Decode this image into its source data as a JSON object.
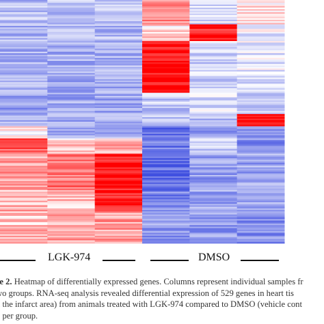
{
  "chart_data": {
    "type": "heatmap",
    "groups": [
      {
        "name": "LGK-974",
        "columns": 3
      },
      {
        "name": "DMSO",
        "columns": 3
      }
    ],
    "columns": 6,
    "genes": 529,
    "colors": {
      "low": "#3f4fe0",
      "mid": "#ffffff",
      "high": "#ff0000"
    },
    "blocks": [
      {
        "rows": [
          0,
          0.1
        ],
        "values": [
          -0.35,
          -0.35,
          -0.35,
          0.45,
          -0.2,
          0.1
        ]
      },
      {
        "rows": [
          0.1,
          0.17
        ],
        "values": [
          -0.4,
          -0.4,
          -0.4,
          0.15,
          0.9,
          -0.1
        ]
      },
      {
        "rows": [
          0.17,
          0.38
        ],
        "values": [
          -0.45,
          -0.45,
          -0.45,
          0.95,
          -0.25,
          -0.15
        ]
      },
      {
        "rows": [
          0.38,
          0.47
        ],
        "values": [
          -0.5,
          -0.5,
          -0.5,
          -0.3,
          -0.2,
          -0.25
        ]
      },
      {
        "rows": [
          0.47,
          0.52
        ],
        "values": [
          -0.45,
          -0.45,
          -0.45,
          -0.35,
          -0.35,
          0.95
        ]
      },
      {
        "rows": [
          0.52,
          0.57
        ],
        "values": [
          0.05,
          -0.45,
          -0.45,
          -0.8,
          -0.55,
          -0.55
        ]
      },
      {
        "rows": [
          0.57,
          0.63
        ],
        "values": [
          0.6,
          0.2,
          0.35,
          -0.75,
          -0.25,
          -0.6
        ]
      },
      {
        "rows": [
          0.63,
          0.78
        ],
        "values": [
          0.35,
          0.55,
          0.95,
          -0.85,
          -0.55,
          -0.5
        ]
      },
      {
        "rows": [
          0.78,
          0.87
        ],
        "values": [
          0.3,
          0.25,
          0.9,
          -0.65,
          -0.5,
          -0.5
        ]
      },
      {
        "rows": [
          0.87,
          1.0
        ],
        "values": [
          0.25,
          0.35,
          0.4,
          -0.55,
          -0.55,
          -0.6
        ]
      }
    ]
  },
  "labels": {
    "group1": "LGK-974",
    "group2": "DMSO"
  },
  "caption": {
    "line1_bold": "re 2.",
    "line1": " Heatmap of differentially expressed genes. Columns represent individual samples fr",
    "line2": "wo groups.  RNA-seq analysis revealed differential expression of 529 genes in heart tis",
    "line3": "n the infarct area) from animals treated with LGK-974 compared to DMSO (vehicle cont",
    "line4": "3 per group."
  }
}
